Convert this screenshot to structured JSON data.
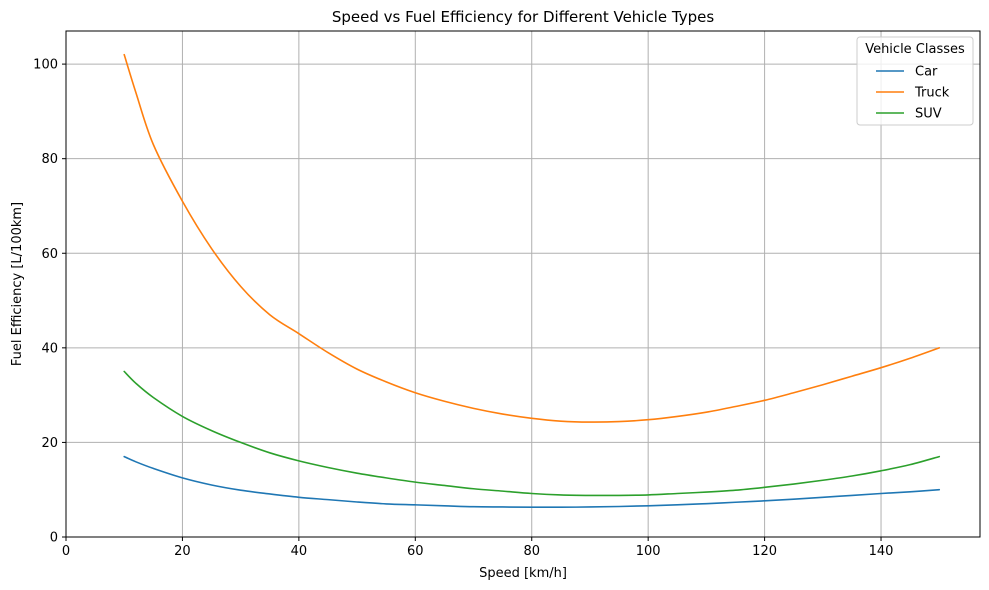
{
  "chart_data": {
    "type": "line",
    "title": "Speed vs Fuel Efficiency for Different Vehicle Types",
    "xlabel": "Speed [km/h]",
    "ylabel": "Fuel Efficiency [L/100km]",
    "xlim": [
      0,
      157
    ],
    "ylim": [
      0,
      107
    ],
    "xticks": [
      0,
      20,
      40,
      60,
      80,
      100,
      120,
      140
    ],
    "yticks": [
      0,
      20,
      40,
      60,
      80,
      100
    ],
    "grid": true,
    "legend": {
      "title": "Vehicle Classes",
      "placement": "top-right"
    },
    "x": [
      10,
      12,
      15,
      20,
      25,
      30,
      35,
      40,
      45,
      50,
      55,
      60,
      65,
      70,
      75,
      80,
      85,
      90,
      95,
      100,
      105,
      110,
      115,
      120,
      125,
      130,
      135,
      140,
      145,
      150
    ],
    "series": [
      {
        "name": "Car",
        "color": "#1f77b4",
        "values": [
          17.0,
          15.9,
          14.5,
          12.5,
          11.0,
          9.9,
          9.1,
          8.4,
          7.9,
          7.4,
          7.0,
          6.8,
          6.6,
          6.4,
          6.35,
          6.3,
          6.3,
          6.35,
          6.45,
          6.6,
          6.8,
          7.05,
          7.35,
          7.65,
          8.0,
          8.4,
          8.8,
          9.2,
          9.55,
          10.0
        ]
      },
      {
        "name": "Truck",
        "color": "#ff7f0e",
        "values": [
          102,
          94,
          83,
          71,
          61,
          53,
          47,
          43,
          39,
          35.5,
          32.8,
          30.5,
          28.7,
          27.2,
          26.0,
          25.1,
          24.5,
          24.3,
          24.4,
          24.8,
          25.5,
          26.4,
          27.6,
          28.9,
          30.5,
          32.2,
          34.0,
          35.8,
          37.8,
          40.0
        ]
      },
      {
        "name": "SUV",
        "color": "#2ca02c",
        "values": [
          35,
          32.5,
          29.5,
          25.5,
          22.5,
          20.0,
          17.8,
          16.1,
          14.7,
          13.5,
          12.5,
          11.6,
          10.9,
          10.2,
          9.7,
          9.2,
          8.9,
          8.8,
          8.8,
          8.9,
          9.2,
          9.5,
          9.9,
          10.5,
          11.2,
          12.0,
          12.9,
          14.0,
          15.3,
          17.0
        ]
      }
    ]
  }
}
